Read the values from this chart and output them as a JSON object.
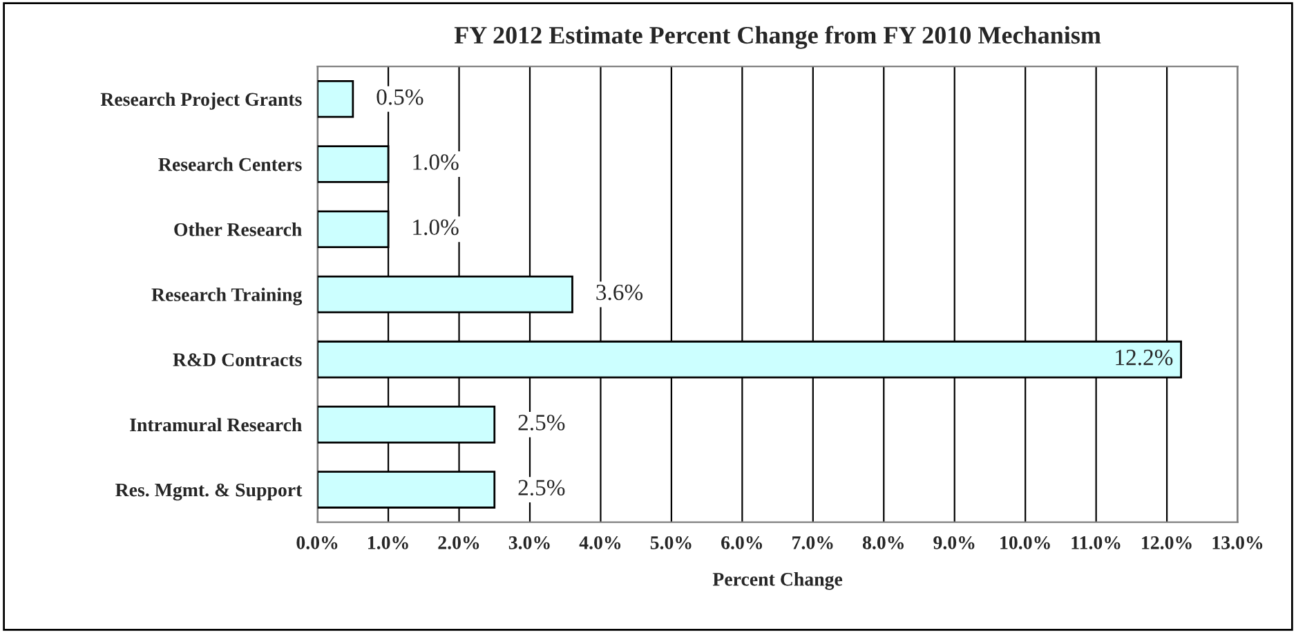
{
  "chart_data": {
    "type": "bar",
    "orientation": "horizontal",
    "title": "FY 2012 Estimate Percent Change from FY 2010 Mechanism",
    "xlabel": "Percent Change",
    "categories": [
      "Research Project Grants",
      "Research Centers",
      "Other Research",
      "Research Training",
      "R&D Contracts",
      "Intramural Research",
      "Res. Mgmt. & Support"
    ],
    "values": [
      0.5,
      1.0,
      1.0,
      3.6,
      12.2,
      2.5,
      2.5
    ],
    "value_labels": [
      "0.5%",
      "1.0%",
      "1.0%",
      "3.6%",
      "12.2%",
      "2.5%",
      "2.5%"
    ],
    "color": "#ccffff",
    "xlim": [
      0,
      13
    ],
    "xticks": [
      {
        "value": 0,
        "label": "0.0%"
      },
      {
        "value": 1,
        "label": "1.0%"
      },
      {
        "value": 2,
        "label": "2.0%"
      },
      {
        "value": 3,
        "label": "3.0%"
      },
      {
        "value": 4,
        "label": "4.0%"
      },
      {
        "value": 5,
        "label": "5.0%"
      },
      {
        "value": 6,
        "label": "6.0%"
      },
      {
        "value": 7,
        "label": "7.0%"
      },
      {
        "value": 8,
        "label": "8.0%"
      },
      {
        "value": 9,
        "label": "9.0%"
      },
      {
        "value": 10,
        "label": "10.0%"
      },
      {
        "value": 11,
        "label": "11.0%"
      },
      {
        "value": 12,
        "label": "12.0%"
      },
      {
        "value": 13,
        "label": "13.0%"
      }
    ],
    "grid": "x"
  }
}
